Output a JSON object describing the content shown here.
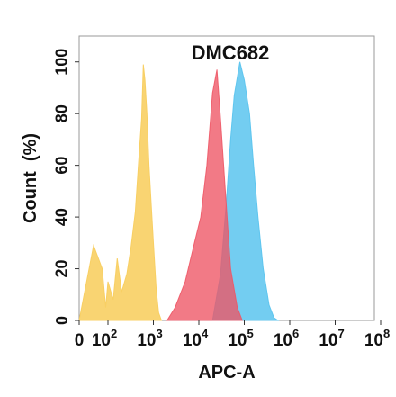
{
  "chart_data": {
    "type": "area",
    "title": "DMC682",
    "xlabel": "APC-A",
    "ylabel": "Count  (%)",
    "x_scale": "biexponential-log",
    "xlim": [
      0,
      100000000
    ],
    "ylim": [
      0,
      110
    ],
    "grid": false,
    "x_ticks": [
      {
        "value": 0,
        "label": "0"
      },
      {
        "value": 100,
        "label": "10",
        "exp": "2"
      },
      {
        "value": 1000,
        "label": "10",
        "exp": "3"
      },
      {
        "value": 10000,
        "label": "10",
        "exp": "4"
      },
      {
        "value": 100000,
        "label": "10",
        "exp": "5"
      },
      {
        "value": 1000000,
        "label": "10",
        "exp": "6"
      },
      {
        "value": 10000000,
        "label": "10",
        "exp": "7"
      },
      {
        "value": 100000000,
        "label": "10",
        "exp": "8"
      }
    ],
    "y_ticks": [
      0,
      20,
      40,
      60,
      80,
      100
    ],
    "series": [
      {
        "color": "#f8cf63",
        "opacity": 0.9,
        "points": [
          [
            0,
            0
          ],
          [
            10,
            29
          ],
          [
            40,
            20
          ],
          [
            70,
            5
          ],
          [
            100,
            15
          ],
          [
            130,
            8
          ],
          [
            160,
            24
          ],
          [
            200,
            11
          ],
          [
            260,
            18
          ],
          [
            320,
            28
          ],
          [
            400,
            42
          ],
          [
            480,
            63
          ],
          [
            550,
            78
          ],
          [
            600,
            99
          ],
          [
            650,
            93
          ],
          [
            720,
            80
          ],
          [
            800,
            60
          ],
          [
            900,
            44
          ],
          [
            1000,
            30
          ],
          [
            1150,
            12
          ],
          [
            1300,
            3
          ],
          [
            1500,
            0
          ]
        ]
      },
      {
        "color": "#5bc4ee",
        "opacity": 0.85,
        "points": [
          [
            20000,
            0
          ],
          [
            30000,
            18
          ],
          [
            40000,
            45
          ],
          [
            50000,
            70
          ],
          [
            60000,
            87
          ],
          [
            80000,
            100
          ],
          [
            100000,
            93
          ],
          [
            130000,
            80
          ],
          [
            160000,
            60
          ],
          [
            200000,
            40
          ],
          [
            260000,
            20
          ],
          [
            350000,
            6
          ],
          [
            450000,
            1
          ],
          [
            550000,
            0
          ]
        ]
      },
      {
        "color": "#ee5564",
        "opacity": 0.78,
        "points": [
          [
            2000,
            0
          ],
          [
            3000,
            5
          ],
          [
            5000,
            15
          ],
          [
            8000,
            30
          ],
          [
            11000,
            40
          ],
          [
            15000,
            60
          ],
          [
            20000,
            88
          ],
          [
            25000,
            97
          ],
          [
            30000,
            78
          ],
          [
            40000,
            45
          ],
          [
            50000,
            20
          ],
          [
            70000,
            5
          ],
          [
            90000,
            0
          ]
        ]
      }
    ]
  }
}
